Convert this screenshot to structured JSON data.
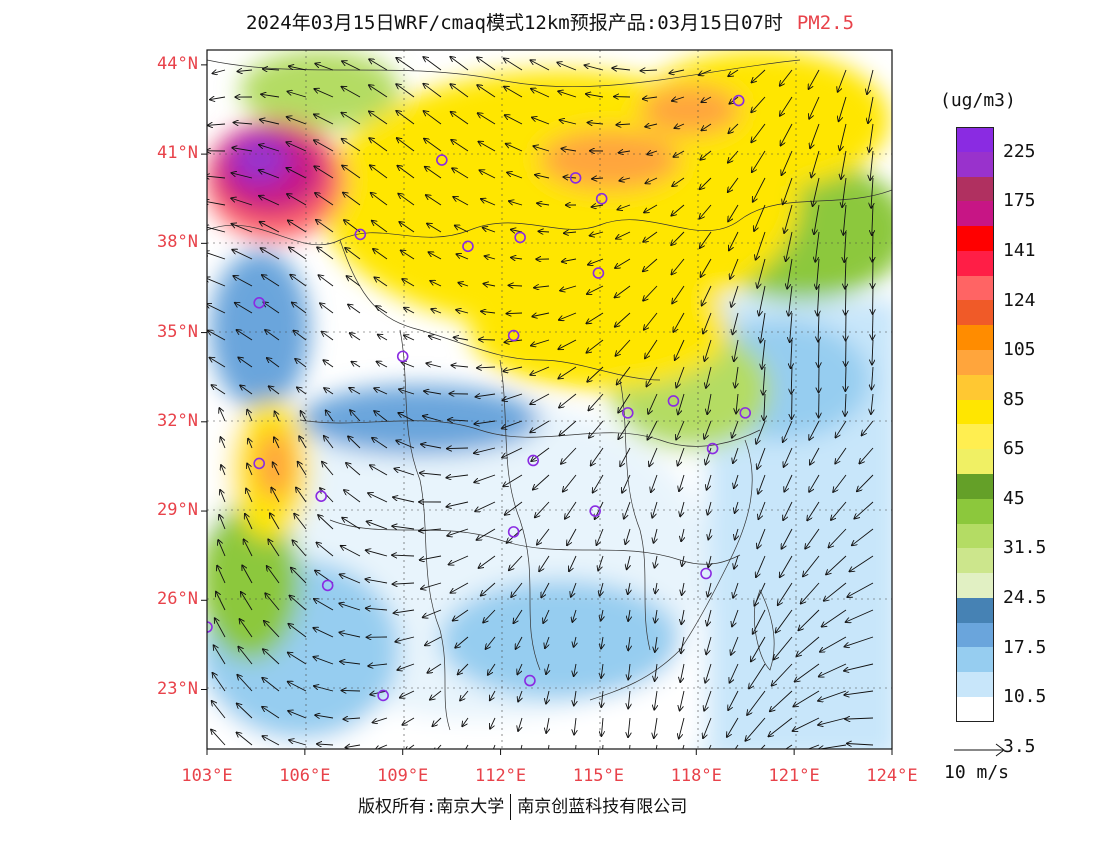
{
  "title": {
    "main": "2024年03月15日WRF/cmaq模式12km预报产品:03月15日07时",
    "pollutant": "PM2.5"
  },
  "map": {
    "lon_range": [
      103,
      124
    ],
    "lat_range": [
      21,
      44.5
    ],
    "lat_ticks": [
      {
        "value": 44,
        "label": "44°N"
      },
      {
        "value": 41,
        "label": "41°N"
      },
      {
        "value": 38,
        "label": "38°N"
      },
      {
        "value": 35,
        "label": "35°N"
      },
      {
        "value": 32,
        "label": "32°N"
      },
      {
        "value": 29,
        "label": "29°N"
      },
      {
        "value": 26,
        "label": "26°N"
      },
      {
        "value": 23,
        "label": "23°N"
      }
    ],
    "lon_ticks": [
      {
        "value": 103,
        "label": "103°E"
      },
      {
        "value": 106,
        "label": "106°E"
      },
      {
        "value": 109,
        "label": "109°E"
      },
      {
        "value": 112,
        "label": "112°E"
      },
      {
        "value": 115,
        "label": "115°E"
      },
      {
        "value": 118,
        "label": "118°E"
      },
      {
        "value": 121,
        "label": "121°E"
      },
      {
        "value": 124,
        "label": "124°E"
      }
    ],
    "city_markers": [
      {
        "lon": 119.3,
        "lat": 42.8
      },
      {
        "lon": 110.2,
        "lat": 40.8
      },
      {
        "lon": 114.3,
        "lat": 40.2
      },
      {
        "lon": 115.1,
        "lat": 39.5
      },
      {
        "lon": 107.7,
        "lat": 38.3
      },
      {
        "lon": 111.0,
        "lat": 37.9
      },
      {
        "lon": 112.6,
        "lat": 38.2
      },
      {
        "lon": 115.0,
        "lat": 37.0
      },
      {
        "lon": 104.6,
        "lat": 36.0
      },
      {
        "lon": 112.4,
        "lat": 34.9
      },
      {
        "lon": 109.0,
        "lat": 34.2
      },
      {
        "lon": 115.9,
        "lat": 32.3
      },
      {
        "lon": 117.3,
        "lat": 32.7
      },
      {
        "lon": 119.5,
        "lat": 32.3
      },
      {
        "lon": 104.6,
        "lat": 30.6
      },
      {
        "lon": 113.0,
        "lat": 30.7
      },
      {
        "lon": 118.5,
        "lat": 31.1
      },
      {
        "lon": 106.5,
        "lat": 29.5
      },
      {
        "lon": 114.9,
        "lat": 29.0
      },
      {
        "lon": 112.4,
        "lat": 28.3
      },
      {
        "lon": 106.7,
        "lat": 26.5
      },
      {
        "lon": 118.3,
        "lat": 26.9
      },
      {
        "lon": 103.0,
        "lat": 25.1
      },
      {
        "lon": 112.9,
        "lat": 23.3
      },
      {
        "lon": 108.4,
        "lat": 22.8
      }
    ]
  },
  "legend": {
    "units": "(ug/m3)",
    "colors": [
      "#8a2be2",
      "#9932cc",
      "#b03060",
      "#c71585",
      "#ff0000",
      "#ff1e46",
      "#ff6464",
      "#f05a28",
      "#ff8c00",
      "#ffa53c",
      "#ffc832",
      "#ffe600",
      "#ffee50",
      "#f0f064",
      "#64a028",
      "#8cc83c",
      "#b4dc64",
      "#cce68c",
      "#e1f0c3",
      "#4682b4",
      "#6aa5dc",
      "#96cdf0",
      "#c8e6fa",
      "#ffffff"
    ],
    "labels": [
      "225",
      "175",
      "141",
      "124",
      "105",
      "85",
      "65",
      "45",
      "31.5",
      "24.5",
      "17.5",
      "10.5",
      "3.5"
    ]
  },
  "wind_reference": {
    "label": "10 m/s"
  },
  "footer": {
    "copyright": "版权所有:南京大学",
    "company": "南京创蓝科技有限公司"
  }
}
